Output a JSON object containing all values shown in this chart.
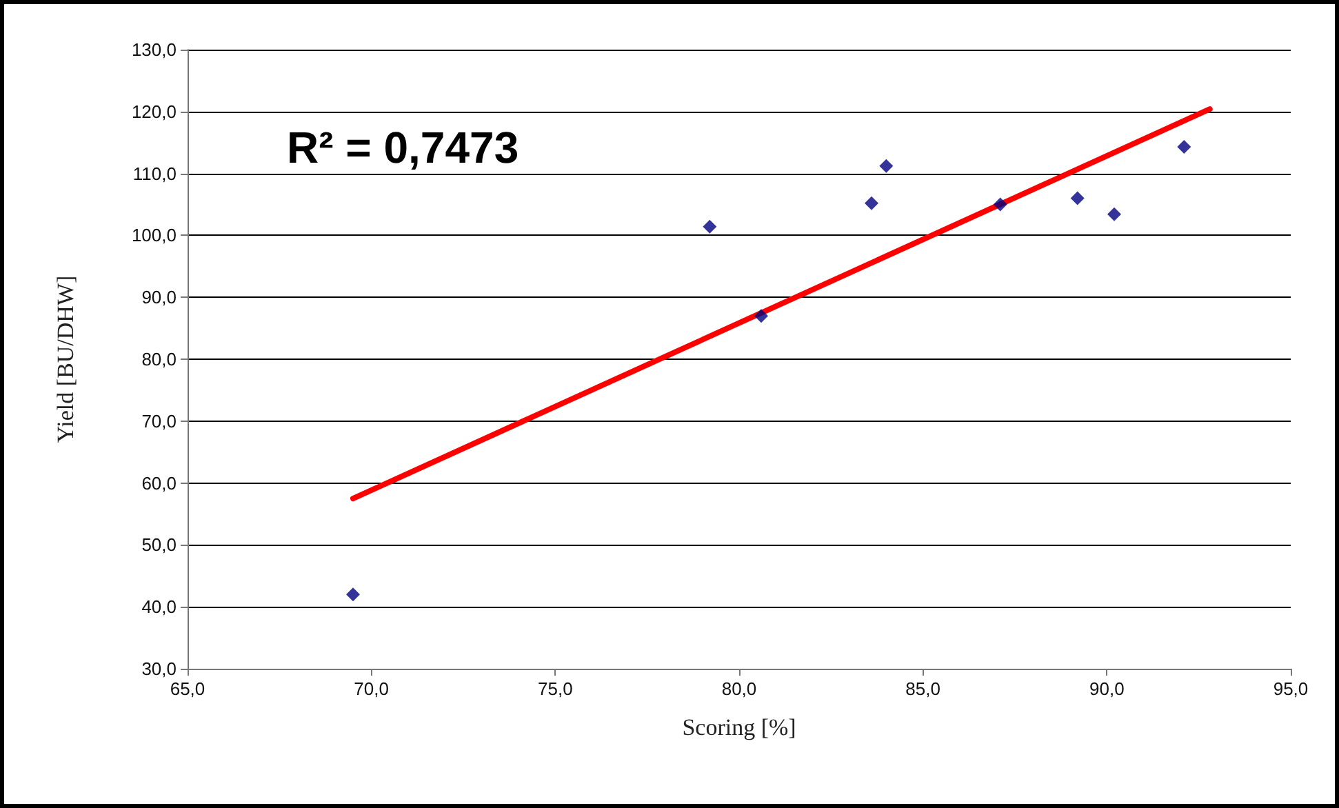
{
  "chart_data": {
    "type": "scatter",
    "xlabel": "Scoring [%]",
    "ylabel": "Yield [BU/DHW]",
    "annotations": [
      "R² = 0,7473"
    ],
    "series": [
      {
        "color": "#000080",
        "marker": "diamond",
        "x": [
          69.5,
          79.2,
          80.6,
          83.6,
          84.0,
          87.1,
          89.2,
          90.2,
          92.1
        ],
        "values": [
          42,
          101.4,
          87,
          105.2,
          111.2,
          105,
          106,
          103.4,
          114.3
        ]
      },
      {
        "type": "line",
        "color": "#ff0000",
        "marker": "none",
        "line_style": "solid",
        "x": [
          69.5,
          92.8
        ],
        "values": [
          57.5,
          120.4
        ]
      }
    ],
    "xlim": [
      65,
      95
    ],
    "xticks": [
      {
        "value": 65,
        "label": "65,0"
      },
      {
        "value": 70,
        "label": "70,0"
      },
      {
        "value": 75,
        "label": "75,0"
      },
      {
        "value": 80,
        "label": "80,0"
      },
      {
        "value": 85,
        "label": "85,0"
      },
      {
        "value": 90,
        "label": "90,0"
      },
      {
        "value": 95,
        "label": "95,0"
      }
    ],
    "ylim": [
      30,
      130
    ],
    "yticks": [
      {
        "value": 30,
        "label": "30,0"
      },
      {
        "value": 40,
        "label": "40,0"
      },
      {
        "value": 50,
        "label": "50,0"
      },
      {
        "value": 60,
        "label": "60,0"
      },
      {
        "value": 70,
        "label": "70,0"
      },
      {
        "value": 80,
        "label": "80,0"
      },
      {
        "value": 90,
        "label": "90,0"
      },
      {
        "value": 100,
        "label": "100,0"
      },
      {
        "value": 110,
        "label": "110,0"
      },
      {
        "value": 120,
        "label": "120,0"
      },
      {
        "value": 130,
        "label": "130,0"
      }
    ],
    "grid": "y"
  }
}
